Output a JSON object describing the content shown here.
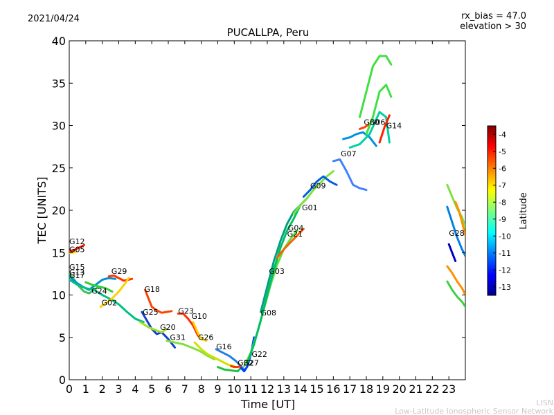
{
  "header": {
    "date": "2021/04/24",
    "title": "PUCALLPA, Peru",
    "rx_bias": "rx_bias = 47.0",
    "elevation": "elevation > 30"
  },
  "footer": {
    "credit_1": "LISN",
    "credit_2": "Low-Latitude Ionospheric Sensor Network"
  },
  "chart_data": {
    "type": "line",
    "xlabel": "Time [UT]",
    "ylabel": "TEC [UNITS]",
    "xlim": [
      0,
      24
    ],
    "ylim": [
      0,
      40
    ],
    "xticks": [
      "0",
      "1",
      "2",
      "3",
      "4",
      "5",
      "6",
      "7",
      "8",
      "9",
      "10",
      "11",
      "12",
      "13",
      "14",
      "15",
      "16",
      "17",
      "18",
      "19",
      "20",
      "21",
      "22",
      "23"
    ],
    "yticks": [
      "0",
      "5",
      "10",
      "15",
      "20",
      "25",
      "30",
      "35",
      "40"
    ],
    "colorbar": {
      "label": "Latitude",
      "range": [
        -13.5,
        -3.5
      ],
      "ticks": [
        "-4",
        "-5",
        "-6",
        "-7",
        "-8",
        "-9",
        "-10",
        "-11",
        "-12",
        "-13"
      ],
      "colormap": [
        "#00008f",
        "#0000ff",
        "#0080ff",
        "#00ffff",
        "#80ff80",
        "#ffff00",
        "#ff8000",
        "#ff0000",
        "#800000"
      ]
    },
    "series": [
      {
        "name": "G12",
        "color": "#ff2000",
        "x": [
          0.0,
          0.3,
          0.6,
          0.9
        ],
        "y": [
          15.2,
          15.3,
          15.6,
          15.9
        ]
      },
      {
        "name": "G05",
        "color": "#ffd000",
        "x": [
          0.0,
          0.2,
          0.4
        ],
        "y": [
          15.0,
          15.0,
          15.1
        ]
      },
      {
        "name": "G15",
        "color": "#40c060",
        "x": [
          0.0,
          0.3,
          0.6,
          0.9,
          1.2,
          1.5,
          1.8,
          2.0
        ],
        "y": [
          12.5,
          11.8,
          11.0,
          10.4,
          10.2,
          10.6,
          11.0,
          10.9
        ]
      },
      {
        "name": "G13",
        "color": "#0090d0",
        "x": [
          0.0,
          0.4,
          0.8,
          1.2,
          1.6,
          2.0,
          2.4,
          2.8
        ],
        "y": [
          12.2,
          11.5,
          11.0,
          10.6,
          11.2,
          11.8,
          12.0,
          11.9
        ]
      },
      {
        "name": "G17",
        "color": "#00c080",
        "x": [
          0.0,
          0.5,
          1.0,
          1.5,
          2.0,
          2.5,
          3.0,
          3.5,
          4.0,
          4.5
        ],
        "y": [
          11.8,
          11.2,
          10.8,
          10.6,
          10.0,
          9.5,
          8.9,
          8.0,
          7.2,
          6.8
        ]
      },
      {
        "name": "G24",
        "color": "#30d030",
        "x": [
          1.0,
          1.4,
          1.8,
          2.2,
          2.6
        ],
        "y": [
          11.5,
          11.2,
          11.0,
          10.8,
          10.4
        ]
      },
      {
        "name": "G29",
        "color": "#ff3000",
        "x": [
          2.4,
          2.7,
          3.0,
          3.3,
          3.6,
          3.8
        ],
        "y": [
          12.2,
          12.3,
          12.0,
          11.7,
          11.8,
          11.9
        ]
      },
      {
        "name": "G02",
        "color": "#ffd000",
        "x": [
          1.9,
          2.2,
          2.6,
          3.0,
          3.4,
          3.6
        ],
        "y": [
          8.6,
          9.0,
          9.6,
          10.4,
          11.4,
          12.0
        ]
      },
      {
        "name": "G18",
        "color": "#ff4000",
        "x": [
          4.6,
          4.8,
          5.0,
          5.3,
          5.6,
          5.9,
          6.2
        ],
        "y": [
          10.6,
          9.6,
          8.6,
          8.2,
          7.9,
          8.0,
          8.1
        ]
      },
      {
        "name": "G25",
        "color": "#1040d0",
        "x": [
          4.4,
          4.7,
          5.0,
          5.3,
          5.6,
          6.0,
          6.4
        ],
        "y": [
          8.0,
          7.0,
          6.0,
          5.4,
          5.6,
          4.8,
          3.8
        ]
      },
      {
        "name": "G20",
        "color": "#a0e020",
        "x": [
          4.3,
          4.8,
          5.3,
          5.6,
          5.9
        ],
        "y": [
          6.8,
          6.2,
          5.8,
          5.6,
          6.0
        ]
      },
      {
        "name": "G23",
        "color": "#ff3000",
        "x": [
          6.6,
          6.9,
          7.2,
          7.5,
          7.8
        ],
        "y": [
          7.8,
          7.8,
          7.2,
          6.4,
          5.2
        ]
      },
      {
        "name": "G10",
        "color": "#ffd000",
        "x": [
          7.5,
          7.8,
          8.0,
          8.3
        ],
        "y": [
          6.8,
          5.5,
          4.8,
          4.6
        ]
      },
      {
        "name": "G31",
        "color": "#80e040",
        "x": [
          5.9,
          6.4,
          6.9,
          7.4,
          7.9,
          8.4,
          8.8
        ],
        "y": [
          4.6,
          4.4,
          4.2,
          3.8,
          3.4,
          2.8,
          2.4
        ]
      },
      {
        "name": "G26",
        "color": "#d0e000",
        "x": [
          7.6,
          8.0,
          8.4,
          8.8,
          9.2,
          9.6,
          10.0
        ],
        "y": [
          4.4,
          3.6,
          3.0,
          2.6,
          2.2,
          1.8,
          1.6
        ]
      },
      {
        "name": "G16",
        "color": "#2080e0",
        "x": [
          8.9,
          9.3,
          9.7,
          10.1,
          10.4,
          10.6
        ],
        "y": [
          3.6,
          3.2,
          2.8,
          2.2,
          1.6,
          1.2
        ]
      },
      {
        "name": "G32",
        "color": "#ff3000",
        "x": [
          9.8,
          10.0,
          10.2,
          10.4
        ],
        "y": [
          1.6,
          1.5,
          1.5,
          1.6
        ]
      },
      {
        "name": "G27",
        "color": "#20c040",
        "x": [
          9.0,
          9.4,
          9.8,
          10.2,
          10.4
        ],
        "y": [
          1.5,
          1.2,
          1.1,
          1.0,
          1.4
        ]
      },
      {
        "name": "G22",
        "color": "#0040ff",
        "x": [
          10.4,
          10.6,
          10.8,
          11.0,
          11.2
        ],
        "y": [
          1.4,
          1.0,
          1.6,
          3.0,
          5.0
        ]
      },
      {
        "name": "G08",
        "color": "#60e040",
        "x": [
          10.6,
          11.0,
          11.4,
          11.8,
          12.2,
          12.6,
          13.0,
          13.4,
          13.8
        ],
        "y": [
          1.6,
          3.2,
          5.6,
          8.4,
          11.2,
          13.6,
          15.4,
          16.6,
          17.6
        ]
      },
      {
        "name": "G03",
        "color": "#00c060",
        "x": [
          10.8,
          11.2,
          11.6,
          12.0,
          12.4,
          12.8,
          13.2,
          13.6,
          14.0,
          14.4
        ],
        "y": [
          2.0,
          4.2,
          7.0,
          10.0,
          13.0,
          15.6,
          17.6,
          19.0,
          20.6,
          21.4
        ]
      },
      {
        "name": "G21",
        "color": "#00a080",
        "x": [
          11.6,
          12.0,
          12.4,
          12.8,
          13.2,
          13.6,
          14.0
        ],
        "y": [
          8.0,
          11.0,
          14.0,
          16.4,
          18.4,
          19.8,
          20.6
        ]
      },
      {
        "name": "G04",
        "color": "#ff6000",
        "x": [
          12.6,
          13.0,
          13.4,
          13.8,
          14.2
        ],
        "y": [
          14.4,
          15.4,
          16.2,
          17.0,
          17.8
        ]
      },
      {
        "name": "G01",
        "color": "#80e040",
        "x": [
          13.6,
          14.0,
          14.4,
          14.8,
          15.2,
          15.6,
          16.0
        ],
        "y": [
          19.6,
          20.6,
          21.4,
          22.4,
          23.2,
          24.0,
          24.6
        ]
      },
      {
        "name": "G09",
        "color": "#0060e0",
        "x": [
          14.2,
          14.6,
          15.0,
          15.4,
          15.8,
          16.2
        ],
        "y": [
          21.6,
          22.4,
          23.4,
          24.0,
          23.4,
          23.0
        ]
      },
      {
        "name": "G07",
        "color": "#4080ff",
        "x": [
          16.0,
          16.4,
          16.8,
          17.2,
          17.6,
          18.0
        ],
        "y": [
          25.8,
          26.0,
          24.6,
          23.0,
          22.6,
          22.4
        ]
      },
      {
        "name": "G30",
        "color": "#ff4000",
        "x": [
          17.6,
          17.9,
          18.2
        ],
        "y": [
          29.6,
          29.8,
          30.2
        ]
      },
      {
        "name": "G06",
        "color": "#0090e0",
        "x": [
          16.6,
          17.0,
          17.4,
          17.8,
          18.2,
          18.6
        ],
        "y": [
          28.4,
          28.6,
          29.0,
          29.2,
          28.6,
          27.6
        ]
      },
      {
        "name": "G14",
        "color": "#00d0a0",
        "x": [
          17.0,
          17.6,
          18.2,
          18.8,
          19.2,
          19.4
        ],
        "y": [
          27.4,
          27.8,
          29.0,
          31.6,
          31.0,
          28.0
        ]
      },
      {
        "name": "G28",
        "color": "#0080e0",
        "x": [
          22.9,
          23.2,
          23.5,
          23.8,
          24.0
        ],
        "y": [
          20.4,
          18.6,
          16.8,
          15.4,
          14.6
        ]
      },
      {
        "name": "",
        "color": "#40e040",
        "x": [
          17.6,
          18.0,
          18.4,
          18.8,
          19.2,
          19.5
        ],
        "y": [
          31.0,
          34.0,
          37.0,
          38.2,
          38.2,
          37.2
        ]
      },
      {
        "name": "",
        "color": "#40e040",
        "x": [
          18.0,
          18.4,
          18.8,
          19.2,
          19.5
        ],
        "y": [
          29.0,
          31.0,
          34.0,
          34.8,
          33.4
        ]
      },
      {
        "name": "",
        "color": "#ff2000",
        "x": [
          18.8,
          19.1,
          19.4
        ],
        "y": [
          28.0,
          29.8,
          31.2
        ]
      },
      {
        "name": "",
        "color": "#80e040",
        "x": [
          22.9,
          23.2,
          23.5,
          23.8,
          24.0
        ],
        "y": [
          23.0,
          21.6,
          20.2,
          19.2,
          18.0
        ]
      },
      {
        "name": "",
        "color": "#ff9000",
        "x": [
          23.4,
          23.6,
          23.8,
          24.0
        ],
        "y": [
          21.0,
          20.0,
          18.6,
          17.0
        ]
      },
      {
        "name": "",
        "color": "#ff9000",
        "x": [
          22.9,
          23.2,
          23.5,
          23.8,
          24.0
        ],
        "y": [
          13.4,
          12.6,
          11.6,
          10.8,
          10.0
        ]
      },
      {
        "name": "",
        "color": "#40d040",
        "x": [
          22.9,
          23.2,
          23.5,
          23.8,
          24.0
        ],
        "y": [
          11.6,
          10.6,
          9.8,
          9.2,
          8.6
        ]
      },
      {
        "name": "",
        "color": "#0000c0",
        "x": [
          23.0,
          23.2,
          23.4
        ],
        "y": [
          16.0,
          15.0,
          14.0
        ]
      }
    ],
    "labels": [
      {
        "text": "G12",
        "x": 0.0,
        "y": 15.9
      },
      {
        "text": "G05",
        "x": 0.0,
        "y": 15.0
      },
      {
        "text": "G15",
        "x": 0.0,
        "y": 12.9
      },
      {
        "text": "G13",
        "x": 0.0,
        "y": 12.3
      },
      {
        "text": "G17",
        "x": 0.0,
        "y": 11.9
      },
      {
        "text": "G24",
        "x": 1.35,
        "y": 10.1
      },
      {
        "text": "G29",
        "x": 2.55,
        "y": 12.4
      },
      {
        "text": "G02",
        "x": 1.95,
        "y": 8.7
      },
      {
        "text": "G18",
        "x": 4.55,
        "y": 10.3
      },
      {
        "text": "G25",
        "x": 4.45,
        "y": 7.6
      },
      {
        "text": "G20",
        "x": 5.5,
        "y": 5.8
      },
      {
        "text": "G23",
        "x": 6.6,
        "y": 7.7
      },
      {
        "text": "G10",
        "x": 7.4,
        "y": 7.1
      },
      {
        "text": "G31",
        "x": 6.1,
        "y": 4.6
      },
      {
        "text": "G26",
        "x": 7.8,
        "y": 4.6
      },
      {
        "text": "G16",
        "x": 8.9,
        "y": 3.5
      },
      {
        "text": "G32",
        "x": 10.2,
        "y": 1.6
      },
      {
        "text": "G27",
        "x": 10.55,
        "y": 1.6
      },
      {
        "text": "G22",
        "x": 11.05,
        "y": 2.6
      },
      {
        "text": "G08",
        "x": 11.6,
        "y": 7.5
      },
      {
        "text": "G03",
        "x": 12.1,
        "y": 12.4
      },
      {
        "text": "G21",
        "x": 13.2,
        "y": 16.8
      },
      {
        "text": "G04",
        "x": 13.25,
        "y": 17.5
      },
      {
        "text": "G01",
        "x": 14.1,
        "y": 19.9
      },
      {
        "text": "G09",
        "x": 14.6,
        "y": 22.5
      },
      {
        "text": "G07",
        "x": 16.45,
        "y": 26.3
      },
      {
        "text": "G30",
        "x": 17.85,
        "y": 30.0
      },
      {
        "text": "G06",
        "x": 18.2,
        "y": 30.0
      },
      {
        "text": "G14",
        "x": 19.2,
        "y": 29.6
      },
      {
        "text": "G28",
        "x": 23.0,
        "y": 16.9
      }
    ]
  }
}
